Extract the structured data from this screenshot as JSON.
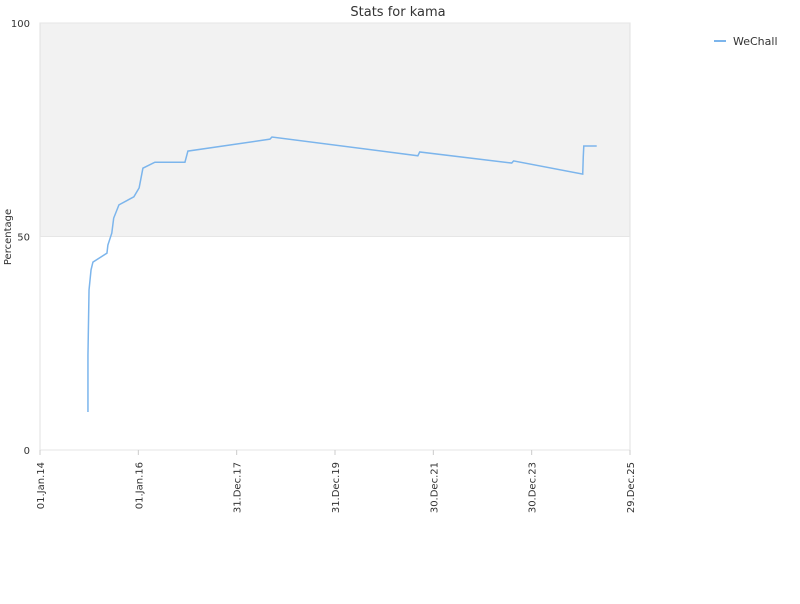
{
  "chart_data": {
    "type": "line",
    "title": "Stats for kama",
    "y_label": "Percentage",
    "x": [
      "2014-12-23",
      "2014-12-23",
      "2014-12-31",
      "2015-01-15",
      "2015-01-29",
      "2015-05-13",
      "2015-05-20",
      "2015-06-18",
      "2015-07-02",
      "2015-08-10",
      "2015-11-29",
      "2016-01-07",
      "2016-02-04",
      "2016-05-03",
      "2016-12-12",
      "2017-01-03",
      "2018-09-04",
      "2018-09-19",
      "2021-09-06",
      "2021-09-20",
      "2023-08-04",
      "2023-08-18",
      "2025-01-12",
      "2025-01-16",
      "2025-01-20",
      "2025-04-26"
    ],
    "series": [
      {
        "name": "WeChall",
        "color": "#7cb5ec",
        "values": [
          8.9,
          22.2,
          37.5,
          42.2,
          44,
          46.1,
          48,
          50.8,
          54.3,
          57.4,
          59.3,
          61.4,
          66,
          67.4,
          67.4,
          70,
          72.8,
          73.3,
          68.9,
          69.8,
          67.2,
          67.7,
          64.6,
          68.6,
          71.2,
          71.2
        ]
      }
    ],
    "xlim": [
      "2014-01-01",
      "2025-12-29"
    ],
    "xticks": [
      {
        "value": "2014-01-01",
        "label": "01.Jan.14"
      },
      {
        "value": "2016-01-01",
        "label": "01.Jan.16"
      },
      {
        "value": "2017-12-31",
        "label": "31.Dec.17"
      },
      {
        "value": "2019-12-31",
        "label": "31.Dec.19"
      },
      {
        "value": "2021-12-30",
        "label": "30.Dec.21"
      },
      {
        "value": "2023-12-30",
        "label": "30.Dec.23"
      },
      {
        "value": "2025-12-29",
        "label": "29.Dec.25"
      }
    ],
    "ylim": [
      0,
      100
    ],
    "yticks": [
      0,
      50,
      100
    ],
    "grid": true,
    "legend": "top-right"
  }
}
